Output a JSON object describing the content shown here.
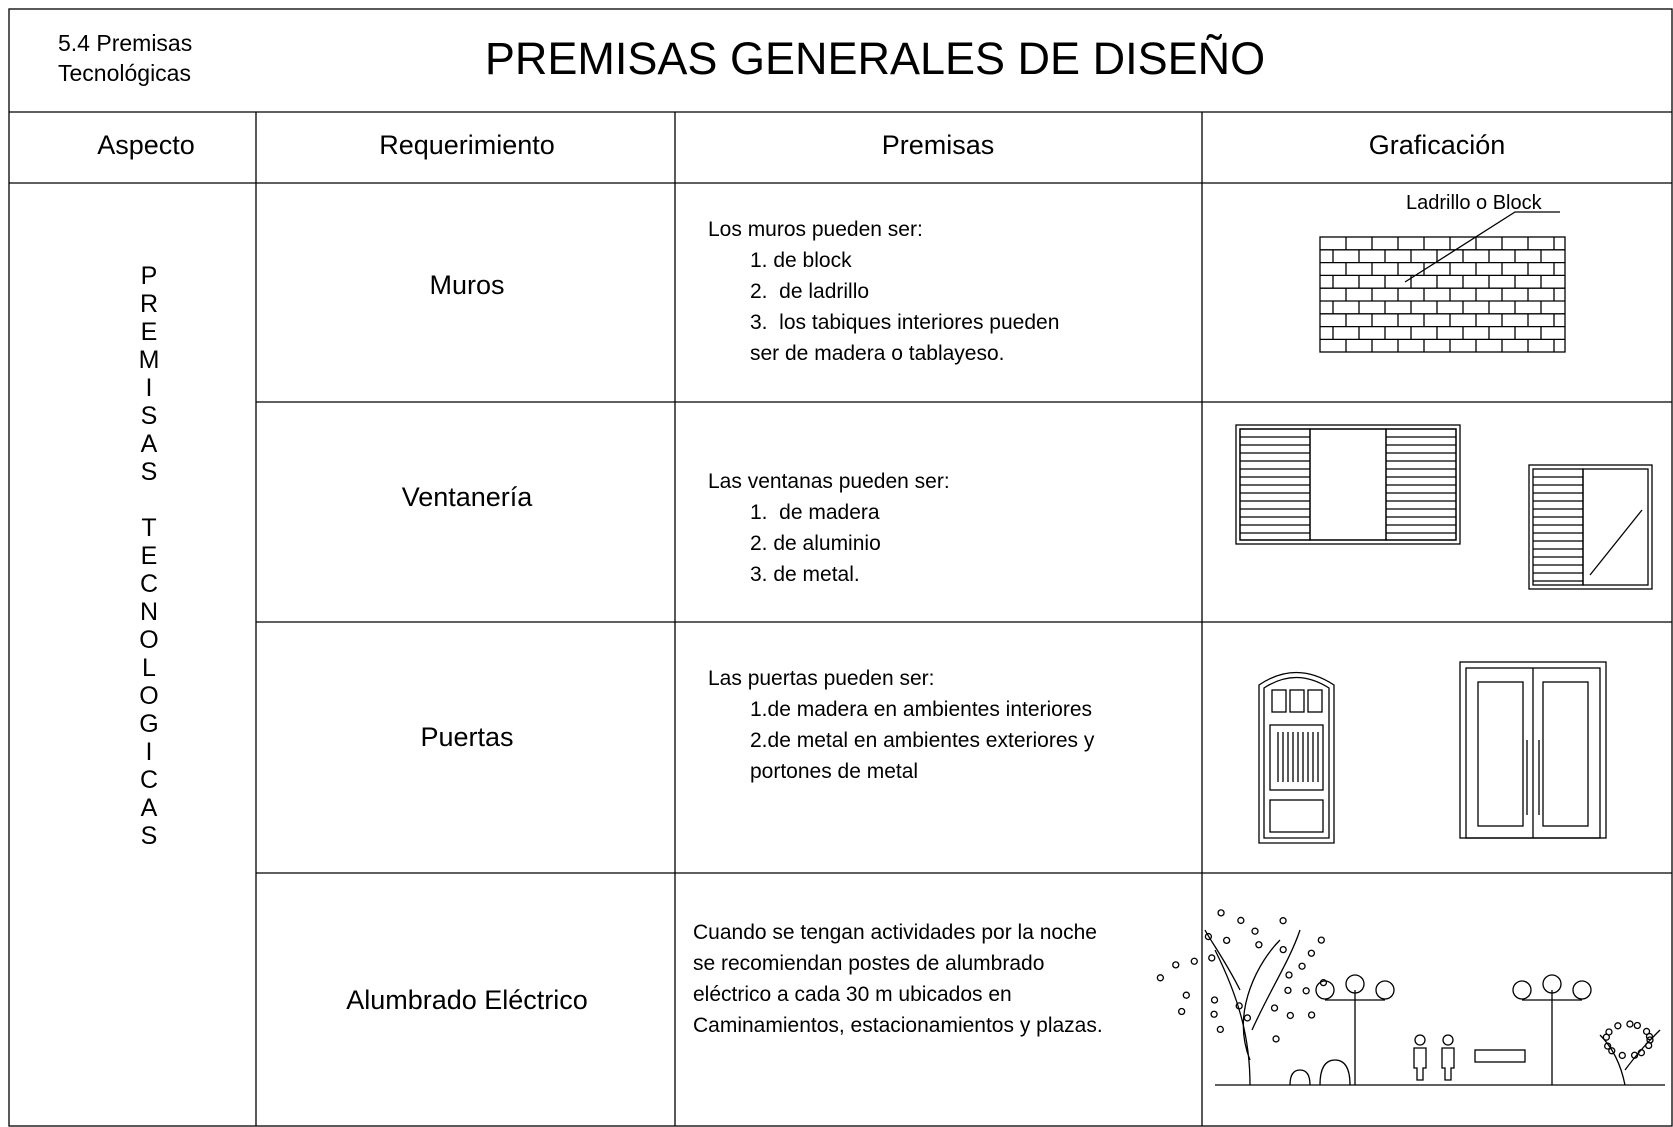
{
  "header": {
    "section": [
      "5.4 Premisas",
      "Tecnológicas"
    ],
    "title": "PREMISAS GENERALES DE DISEÑO"
  },
  "table": {
    "columns": [
      "Aspecto",
      "Requerimiento",
      "Premisas",
      "Graficación"
    ],
    "aspect": "PREMISAS TECNOLOGICAS",
    "rows": [
      {
        "requirement": "Muros",
        "premises": [
          "Los muros pueden ser:",
          "1. de block",
          "2.  de ladrillo",
          "3.  los tabiques interiores pueden",
          "ser de madera o tablayeso."
        ]
      },
      {
        "requirement": "Ventanería",
        "premises": [
          "Las ventanas pueden ser:",
          "1.  de madera",
          "2. de aluminio",
          "3. de metal."
        ]
      },
      {
        "requirement": "Puertas",
        "premises": [
          "Las puertas pueden ser:",
          "1.de madera en ambientes interiores",
          "2.de metal en ambientes exteriores y",
          "portones de metal"
        ]
      },
      {
        "requirement": "Alumbrado Eléctrico",
        "premises": [
          "Cuando se tengan actividades por la noche",
          "se recomiendan postes de alumbrado",
          "eléctrico a cada 30 m ubicados en",
          "Caminamientos, estacionamientos y plazas."
        ]
      }
    ]
  },
  "graphics": {
    "wall_label": "Ladrillo o Block"
  }
}
